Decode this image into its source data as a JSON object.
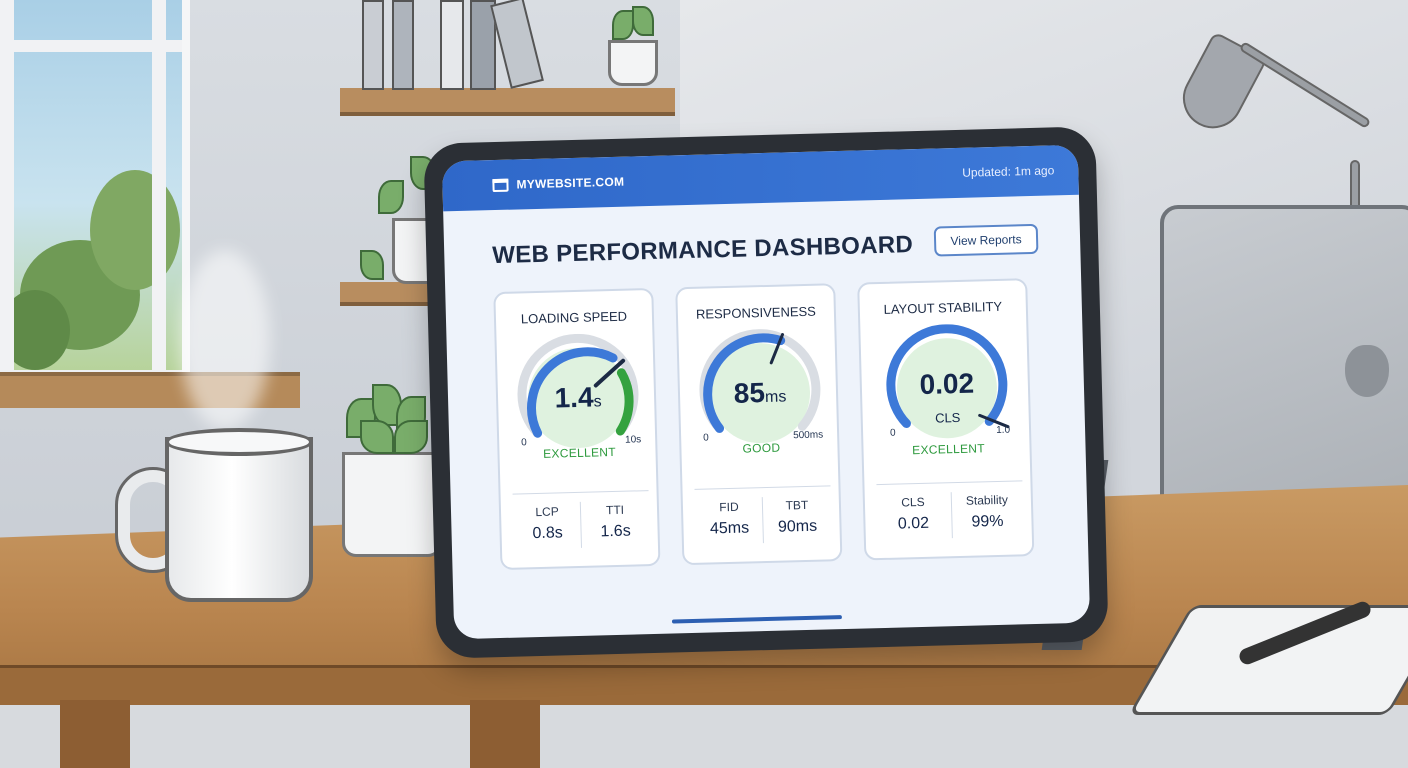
{
  "header": {
    "site_name": "MYWEBSITE.COM",
    "updated": "Updated: 1m ago"
  },
  "dashboard": {
    "title": "WEB PERFORMANCE DASHBOARD",
    "view_reports_label": "View Reports"
  },
  "cards": [
    {
      "title": "LOADING SPEED",
      "value": "1.4",
      "value_unit": "s",
      "unit_label": "",
      "status": "EXCELLENT",
      "min_label": "0",
      "max_label": "10s",
      "metrics": [
        {
          "label": "LCP",
          "value": "0.8s"
        },
        {
          "label": "TTI",
          "value": "1.6s"
        }
      ]
    },
    {
      "title": "RESPONSIVENESS",
      "value": "85",
      "value_unit": "ms",
      "unit_label": "",
      "status": "GOOD",
      "min_label": "0",
      "max_label": "500ms",
      "metrics": [
        {
          "label": "FID",
          "value": "45ms"
        },
        {
          "label": "TBT",
          "value": "90ms"
        }
      ]
    },
    {
      "title": "LAYOUT STABILITY",
      "value": "0.02",
      "value_unit": "",
      "unit_label": "CLS",
      "status": "EXCELLENT",
      "min_label": "0",
      "max_label": "1.0",
      "metrics": [
        {
          "label": "CLS",
          "value": "0.02"
        },
        {
          "label": "Stability",
          "value": "99%"
        }
      ]
    }
  ],
  "colors": {
    "accent_blue": "#3d79d8",
    "good_green": "#2e9a3e",
    "gauge_track": "#d9dde3"
  },
  "icons": {
    "site": "browser-window-icon"
  }
}
